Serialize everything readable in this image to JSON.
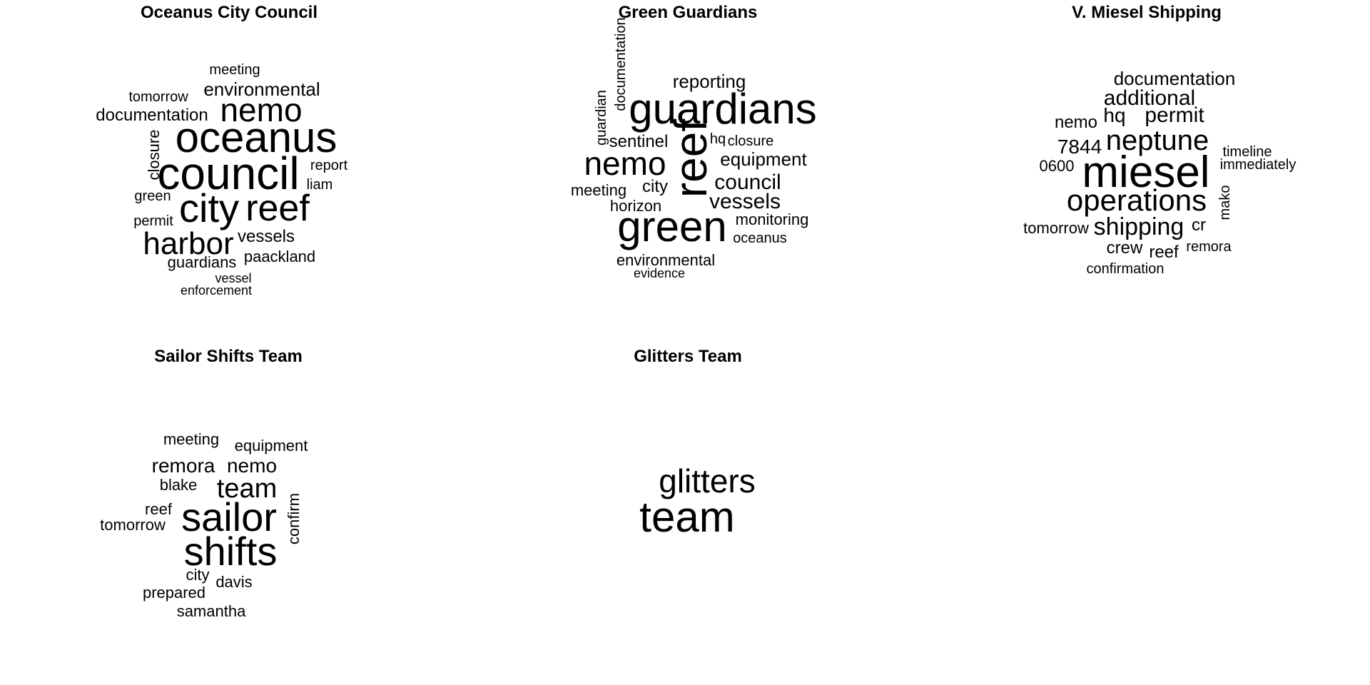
{
  "chart_data": [
    {
      "type": "wordcloud",
      "title": "Oceanus City Council",
      "words": [
        {
          "text": "oceanus",
          "weight": 10
        },
        {
          "text": "council",
          "weight": 10
        },
        {
          "text": "city",
          "weight": 9
        },
        {
          "text": "reef",
          "weight": 8
        },
        {
          "text": "nemo",
          "weight": 7
        },
        {
          "text": "harbor",
          "weight": 7
        },
        {
          "text": "environmental",
          "weight": 4
        },
        {
          "text": "documentation",
          "weight": 4
        },
        {
          "text": "vessels",
          "weight": 4
        },
        {
          "text": "closure",
          "weight": 3
        },
        {
          "text": "guardians",
          "weight": 3
        },
        {
          "text": "paackland",
          "weight": 3
        },
        {
          "text": "meeting",
          "weight": 2
        },
        {
          "text": "tomorrow",
          "weight": 2
        },
        {
          "text": "report",
          "weight": 2
        },
        {
          "text": "liam",
          "weight": 2
        },
        {
          "text": "green",
          "weight": 2
        },
        {
          "text": "permit",
          "weight": 2
        },
        {
          "text": "vessel",
          "weight": 2
        },
        {
          "text": "enforcement",
          "weight": 1
        }
      ]
    },
    {
      "type": "wordcloud",
      "title": "Green Guardians",
      "words": [
        {
          "text": "guardians",
          "weight": 10
        },
        {
          "text": "green",
          "weight": 10
        },
        {
          "text": "reef",
          "weight": 10
        },
        {
          "text": "nemo",
          "weight": 7
        },
        {
          "text": "council",
          "weight": 4
        },
        {
          "text": "vessels",
          "weight": 4
        },
        {
          "text": "equipment",
          "weight": 3
        },
        {
          "text": "reporting",
          "weight": 3
        },
        {
          "text": "sentinel",
          "weight": 3
        },
        {
          "text": "city",
          "weight": 3
        },
        {
          "text": "meeting",
          "weight": 3
        },
        {
          "text": "horizon",
          "weight": 3
        },
        {
          "text": "monitoring",
          "weight": 3
        },
        {
          "text": "environmental",
          "weight": 3
        },
        {
          "text": "documentation",
          "weight": 2
        },
        {
          "text": "guardian",
          "weight": 2
        },
        {
          "text": "hq",
          "weight": 2
        },
        {
          "text": "closure",
          "weight": 2
        },
        {
          "text": "oceanus",
          "weight": 2
        },
        {
          "text": "evidence",
          "weight": 1
        }
      ]
    },
    {
      "type": "wordcloud",
      "title": "V. Miesel Shipping",
      "words": [
        {
          "text": "miesel",
          "weight": 10
        },
        {
          "text": "operations",
          "weight": 7
        },
        {
          "text": "neptune",
          "weight": 6
        },
        {
          "text": "shipping",
          "weight": 5
        },
        {
          "text": "additional",
          "weight": 4
        },
        {
          "text": "documentation",
          "weight": 4
        },
        {
          "text": "permit",
          "weight": 4
        },
        {
          "text": "hq",
          "weight": 4
        },
        {
          "text": "7844",
          "weight": 4
        },
        {
          "text": "nemo",
          "weight": 3
        },
        {
          "text": "crew",
          "weight": 3
        },
        {
          "text": "reef",
          "weight": 3
        },
        {
          "text": "cr",
          "weight": 3
        },
        {
          "text": "0600",
          "weight": 3
        },
        {
          "text": "tomorrow",
          "weight": 3
        },
        {
          "text": "mako",
          "weight": 2
        },
        {
          "text": "remora",
          "weight": 2
        },
        {
          "text": "timeline",
          "weight": 2
        },
        {
          "text": "immediately",
          "weight": 2
        },
        {
          "text": "confirmation",
          "weight": 2
        }
      ]
    },
    {
      "type": "wordcloud",
      "title": "Sailor Shifts Team",
      "words": [
        {
          "text": "sailor",
          "weight": 10
        },
        {
          "text": "shifts",
          "weight": 10
        },
        {
          "text": "team",
          "weight": 6
        },
        {
          "text": "remora",
          "weight": 4
        },
        {
          "text": "nemo",
          "weight": 4
        },
        {
          "text": "equipment",
          "weight": 3
        },
        {
          "text": "meeting",
          "weight": 3
        },
        {
          "text": "confirm",
          "weight": 3
        },
        {
          "text": "blake",
          "weight": 3
        },
        {
          "text": "reef",
          "weight": 3
        },
        {
          "text": "tomorrow",
          "weight": 3
        },
        {
          "text": "davis",
          "weight": 3
        },
        {
          "text": "city",
          "weight": 3
        },
        {
          "text": "prepared",
          "weight": 3
        },
        {
          "text": "samantha",
          "weight": 3
        }
      ]
    },
    {
      "type": "wordcloud",
      "title": "Glitters Team",
      "words": [
        {
          "text": "team",
          "weight": 10
        },
        {
          "text": "glitters",
          "weight": 7
        }
      ]
    }
  ]
}
